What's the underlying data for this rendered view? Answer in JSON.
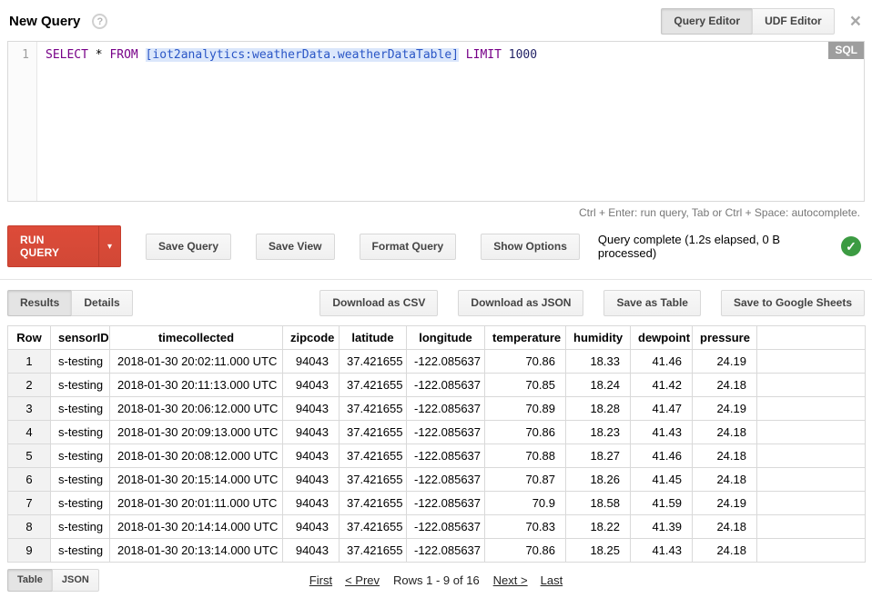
{
  "header": {
    "title": "New Query",
    "help_icon": "?",
    "close_icon": "×",
    "editor_tabs": [
      "Query Editor",
      "UDF Editor"
    ]
  },
  "editor": {
    "line_number": "1",
    "sql_badge": "SQL",
    "query": {
      "select_kw": "SELECT",
      "star": " * ",
      "from_kw": "FROM",
      "sp": " ",
      "table_ref": "[iot2analytics:weatherData.weatherDataTable]",
      "limit_kw": " LIMIT ",
      "limit_value": "1000"
    },
    "hint": "Ctrl + Enter: run query, Tab or Ctrl + Space: autocomplete."
  },
  "toolbar": {
    "run_query_label": "RUN QUERY",
    "caret_down_icon": "▾",
    "save_query_label": "Save Query",
    "save_view_label": "Save View",
    "format_query_label": "Format Query",
    "show_options_label": "Show Options",
    "status": "Query complete (1.2s elapsed, 0 B processed)",
    "check_icon": "✓"
  },
  "results_bar": {
    "tabs": [
      "Results",
      "Details"
    ],
    "actions": [
      "Download as CSV",
      "Download as JSON",
      "Save as Table",
      "Save to Google Sheets"
    ]
  },
  "table": {
    "columns": [
      "Row",
      "sensorID",
      "timecollected",
      "zipcode",
      "latitude",
      "longitude",
      "temperature",
      "humidity",
      "dewpoint",
      "pressure",
      ""
    ],
    "rows": [
      [
        "1",
        "s-testing",
        "2018-01-30 20:02:11.000 UTC",
        "94043",
        "37.421655",
        "-122.085637",
        "70.86",
        "18.33",
        "41.46",
        "24.19",
        ""
      ],
      [
        "2",
        "s-testing",
        "2018-01-30 20:11:13.000 UTC",
        "94043",
        "37.421655",
        "-122.085637",
        "70.85",
        "18.24",
        "41.42",
        "24.18",
        ""
      ],
      [
        "3",
        "s-testing",
        "2018-01-30 20:06:12.000 UTC",
        "94043",
        "37.421655",
        "-122.085637",
        "70.89",
        "18.28",
        "41.47",
        "24.19",
        ""
      ],
      [
        "4",
        "s-testing",
        "2018-01-30 20:09:13.000 UTC",
        "94043",
        "37.421655",
        "-122.085637",
        "70.86",
        "18.23",
        "41.43",
        "24.18",
        ""
      ],
      [
        "5",
        "s-testing",
        "2018-01-30 20:08:12.000 UTC",
        "94043",
        "37.421655",
        "-122.085637",
        "70.88",
        "18.27",
        "41.46",
        "24.18",
        ""
      ],
      [
        "6",
        "s-testing",
        "2018-01-30 20:15:14.000 UTC",
        "94043",
        "37.421655",
        "-122.085637",
        "70.87",
        "18.26",
        "41.45",
        "24.18",
        ""
      ],
      [
        "7",
        "s-testing",
        "2018-01-30 20:01:11.000 UTC",
        "94043",
        "37.421655",
        "-122.085637",
        "70.9",
        "18.58",
        "41.59",
        "24.19",
        ""
      ],
      [
        "8",
        "s-testing",
        "2018-01-30 20:14:14.000 UTC",
        "94043",
        "37.421655",
        "-122.085637",
        "70.83",
        "18.22",
        "41.39",
        "24.18",
        ""
      ],
      [
        "9",
        "s-testing",
        "2018-01-30 20:13:14.000 UTC",
        "94043",
        "37.421655",
        "-122.085637",
        "70.86",
        "18.25",
        "41.43",
        "24.18",
        ""
      ]
    ]
  },
  "footer": {
    "view_tabs": [
      "Table",
      "JSON"
    ],
    "pagination": {
      "first": "First",
      "prev": "< Prev",
      "info": "Rows 1 - 9 of 16",
      "next": "Next >",
      "last": "Last"
    }
  },
  "colors": {
    "run_button_red": "#d14836",
    "success_green": "#3c9b42",
    "sql_badge_bg": "#9e9e9e",
    "keyword_purple": "#770088",
    "table_ref_blue": "#2a56c6",
    "table_ref_highlight": "#dbe7fb"
  }
}
